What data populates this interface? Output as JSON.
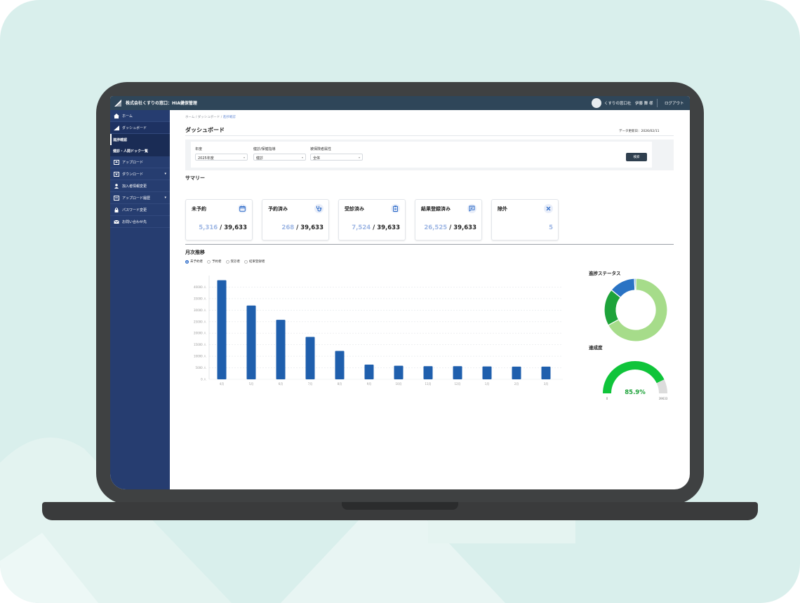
{
  "colors": {
    "sidebar": "#263d70",
    "topbar": "#2f4659",
    "bar": "#1f5fad",
    "accent": "#1b5fc4",
    "donut_green_light": "#a6dc8a",
    "donut_green": "#1ea33a",
    "donut_blue": "#2a73c4",
    "gauge": "#0fc43a"
  },
  "topbar": {
    "company": "株式会社くすりの窓口：HIA健保管理",
    "user": "くすりの窓口社　伊藤 舞 様",
    "logout": "ログアウト"
  },
  "sidebar": {
    "items": [
      {
        "label": "ホーム",
        "icon": "home-icon"
      },
      {
        "label": "ダッシュボード",
        "icon": "chart-icon"
      },
      {
        "label": "アップロード",
        "icon": "upload-icon"
      },
      {
        "label": "ダウンロード",
        "icon": "download-icon"
      },
      {
        "label": "加入者情報変更",
        "icon": "user-icon"
      },
      {
        "label": "アップロード履歴",
        "icon": "history-icon"
      },
      {
        "label": "パスワード変更",
        "icon": "lock-icon"
      },
      {
        "label": "お問い合わせ先",
        "icon": "mail-icon"
      }
    ],
    "sub": [
      {
        "label": "進捗確認"
      },
      {
        "label": "健診・人間ドック一覧"
      }
    ]
  },
  "breadcrumb": {
    "home": "ホーム",
    "dash": "ダッシュボード",
    "current": "進捗確認"
  },
  "page": {
    "title": "ダッシュボード",
    "updated": "データ更新日：2026/02/11"
  },
  "filters": {
    "year": {
      "label": "年度",
      "value": "2025年度"
    },
    "type": {
      "label": "健診/保健指導",
      "value": "健診"
    },
    "attr": {
      "label": "被保険者属性",
      "value": "全体"
    },
    "search": "検索"
  },
  "summary": {
    "title": "サマリー",
    "cards": [
      {
        "label": "未予約",
        "value": "5,316",
        "total": "/ 39,633",
        "icon": "calendar-icon"
      },
      {
        "label": "予約済み",
        "value": "268",
        "total": "/ 39,633",
        "icon": "stethoscope-icon"
      },
      {
        "label": "受診済み",
        "value": "7,524",
        "total": "/ 39,633",
        "icon": "clipboard-icon"
      },
      {
        "label": "結果登録済み",
        "value": "26,525",
        "total": "/ 39,633",
        "icon": "message-icon"
      },
      {
        "label": "除外",
        "value": "5",
        "total": "",
        "icon": "close-icon"
      }
    ]
  },
  "monthly": {
    "title": "月次推移",
    "options": [
      {
        "label": "未予約者",
        "checked": true
      },
      {
        "label": "予約者",
        "checked": false
      },
      {
        "label": "受診者",
        "checked": false
      },
      {
        "label": "結果登録者",
        "checked": false
      }
    ]
  },
  "chart_data": [
    {
      "type": "bar",
      "categories": [
        "4月",
        "5月",
        "6月",
        "7月",
        "8月",
        "9月",
        "10月",
        "11月",
        "12月",
        "1月",
        "2月",
        "3月"
      ],
      "values": [
        43000,
        32000,
        25800,
        18400,
        12300,
        6400,
        5900,
        5700,
        5700,
        5600,
        5500,
        5500
      ],
      "ylim": [
        0,
        45000
      ],
      "yticks": [
        "0 人",
        "5000 人",
        "10000 人",
        "15000 人",
        "20000 人",
        "25000 人",
        "30000 人",
        "35000 人",
        "40000 人"
      ],
      "grid": true
    },
    {
      "type": "pie",
      "title": "進捗ステータス",
      "slices": [
        {
          "value": 26525,
          "color": "#a6dc8a"
        },
        {
          "value": 7524,
          "color": "#1ea33a"
        },
        {
          "value": 5316,
          "color": "#2a73c4"
        },
        {
          "value": 268,
          "color": "#2a73c4"
        }
      ]
    },
    {
      "type": "gauge",
      "title": "達成度",
      "value": 85.9,
      "label": "85.9%",
      "min_label": "0",
      "max_label": "39633"
    }
  ]
}
